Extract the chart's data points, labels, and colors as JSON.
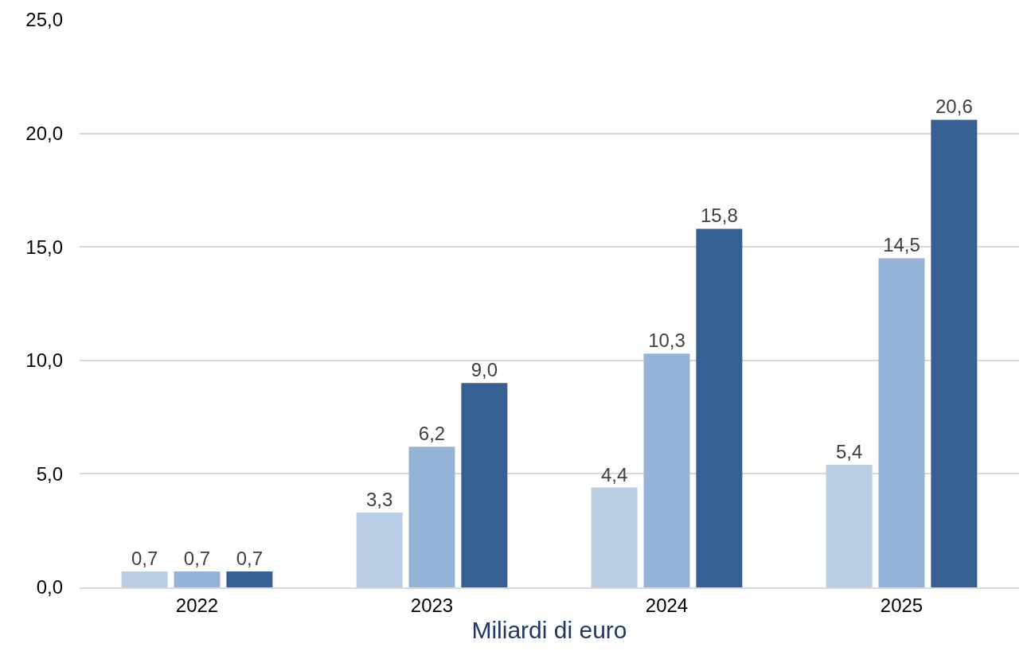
{
  "chart_data": {
    "type": "bar",
    "xlabel": "Miliardi di euro",
    "categories": [
      "2022",
      "2023",
      "2024",
      "2025"
    ],
    "series": [
      {
        "color": "#b9cde5",
        "values": [
          0.7,
          3.3,
          4.4,
          5.4
        ],
        "value_labels": [
          "0,7",
          "3,3",
          "4,4",
          "5,4"
        ]
      },
      {
        "color": "#95b3d7",
        "values": [
          0.7,
          6.2,
          10.3,
          14.5
        ],
        "value_labels": [
          "0,7",
          "6,2",
          "10,3",
          "14,5"
        ]
      },
      {
        "color": "#366092",
        "values": [
          0.7,
          9.0,
          15.8,
          20.6
        ],
        "value_labels": [
          "0,7",
          "9,0",
          "15,8",
          "20,6"
        ]
      }
    ],
    "ylim": [
      0,
      25
    ],
    "yticks": [
      {
        "value": 0,
        "label": "0,0"
      },
      {
        "value": 5,
        "label": "5,0"
      },
      {
        "value": 10,
        "label": "10,0"
      },
      {
        "value": 15,
        "label": "15,0"
      },
      {
        "value": 20,
        "label": "20,0"
      },
      {
        "value": 25,
        "label": "25,0"
      }
    ],
    "grid": "y"
  }
}
